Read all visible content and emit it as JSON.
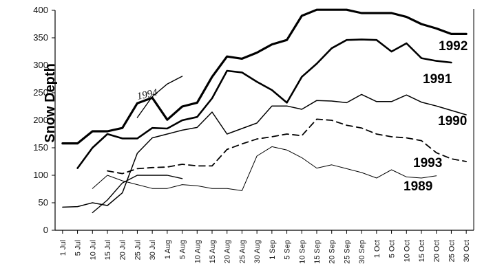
{
  "chart_data": {
    "type": "line",
    "title": "",
    "xlabel": "",
    "ylabel": "Snow Depth",
    "ylim": [
      0,
      400
    ],
    "yticks": [
      "0",
      "50",
      "100",
      "150",
      "200",
      "250",
      "300",
      "350",
      "400"
    ],
    "categories": [
      "1 Jul",
      "5 Jul",
      "10 Jul",
      "15 Jul",
      "20 Jul",
      "25 Jul",
      "30 Jul",
      "1 Aug",
      "5 Aug",
      "10 Aug",
      "15 Aug",
      "20 Aug",
      "25 Aug",
      "30 Aug",
      "1 Sep",
      "5 Sep",
      "10 Sep",
      "15 Sep",
      "20 Sep",
      "25 Sep",
      "30 Sep",
      "1 Oct",
      "5 Oct",
      "10 Oct",
      "15 Oct",
      "20 Oct",
      "25 Oct",
      "30 Oct"
    ],
    "grid": false,
    "legend": "labels beside lines",
    "series": [
      {
        "name": "1992",
        "color": "#000000",
        "width": 3.2,
        "dash": "",
        "values": [
          158,
          158,
          180,
          180,
          186,
          231,
          241,
          201,
          225,
          232,
          279,
          316,
          312,
          323,
          338,
          346,
          390,
          401,
          401,
          401,
          395,
          395,
          395,
          388,
          375,
          367,
          357,
          357
        ]
      },
      {
        "name": "1991",
        "color": "#000000",
        "width": 2.6,
        "dash": "",
        "values": [
          null,
          113,
          150,
          175,
          167,
          167,
          186,
          185,
          200,
          206,
          240,
          290,
          287,
          270,
          255,
          232,
          279,
          303,
          331,
          346,
          347,
          346,
          325,
          340,
          313,
          308,
          305,
          null
        ]
      },
      {
        "name": "1990",
        "color": "#000000",
        "width": 1.5,
        "dash": "",
        "values": [
          42,
          43,
          50,
          45,
          68,
          140,
          168,
          175,
          182,
          187,
          215,
          175,
          185,
          195,
          226,
          226,
          220,
          236,
          235,
          232,
          247,
          234,
          234,
          246,
          233,
          226,
          218,
          210
        ]
      },
      {
        "name": "1993",
        "color": "#000000",
        "width": 1.8,
        "dash": "9,6",
        "values": [
          null,
          null,
          null,
          108,
          103,
          112,
          114,
          115,
          120,
          117,
          117,
          147,
          157,
          166,
          170,
          175,
          172,
          202,
          200,
          191,
          186,
          175,
          170,
          168,
          163,
          141,
          130,
          125
        ]
      },
      {
        "name": "1989",
        "color": "#000000",
        "width": 1.0,
        "dash": "",
        "values": [
          null,
          null,
          76,
          100,
          90,
          83,
          76,
          76,
          83,
          81,
          76,
          76,
          72,
          135,
          152,
          146,
          132,
          113,
          119,
          112,
          105,
          95,
          110,
          97,
          95,
          99,
          null,
          null
        ]
      },
      {
        "name": "1994",
        "color": "#000000",
        "width": 1.4,
        "dash": "",
        "values": [
          null,
          null,
          32,
          55,
          86,
          100,
          100,
          100,
          94,
          null,
          null,
          null,
          null,
          null,
          null,
          null,
          null,
          null,
          null,
          null,
          null,
          null,
          null,
          null,
          null,
          null,
          null,
          null
        ]
      },
      {
        "name": "1994",
        "color": "#000000",
        "width": 1.4,
        "dash": "",
        "values": [
          null,
          null,
          null,
          null,
          null,
          205,
          243,
          266,
          280,
          null,
          null,
          null,
          null,
          null,
          null,
          null,
          null,
          null,
          null,
          null,
          null,
          null,
          null,
          null,
          null,
          null,
          null,
          null
        ]
      }
    ],
    "annotations": [
      "1992",
      "1991",
      "1990",
      "1993",
      "1989",
      "1994"
    ]
  }
}
